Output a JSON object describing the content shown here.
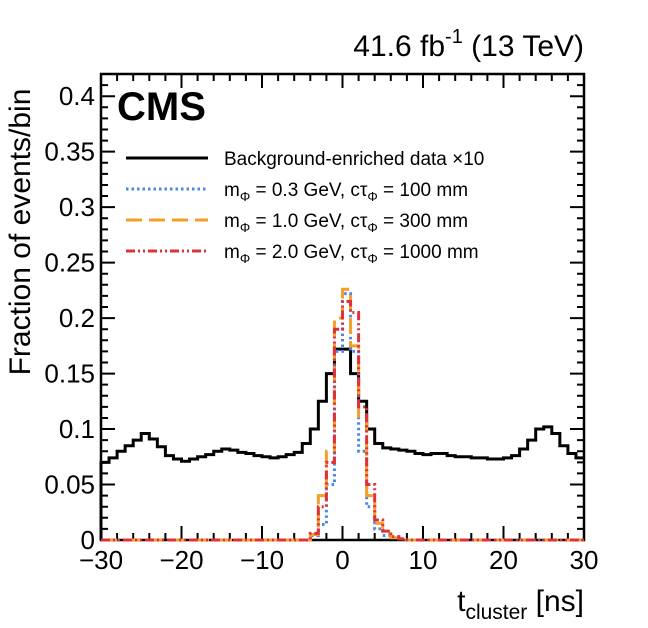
{
  "chart_data": {
    "type": "line",
    "title": "",
    "experiment_label": "CMS",
    "lumi_label": {
      "value": "41.6 fb",
      "exponent": "-1",
      "energy": " (13 TeV)"
    },
    "xlabel": {
      "main": "t",
      "sub": "cluster",
      "unit": " [ns]"
    },
    "ylabel": "Fraction of events/bin",
    "xlim": [
      -30,
      30
    ],
    "ylim": [
      0,
      0.42
    ],
    "x_ticks": [
      -30,
      -20,
      -10,
      0,
      10,
      20,
      30
    ],
    "x_tick_labels": [
      "−30",
      "−20",
      "−10",
      "0",
      "10",
      "20",
      "30"
    ],
    "y_ticks": [
      0,
      0.05,
      0.1,
      0.15,
      0.2,
      0.25,
      0.3,
      0.35,
      0.4
    ],
    "y_tick_labels": [
      "0",
      "0.05",
      "0.1",
      "0.15",
      "0.2",
      "0.25",
      "0.3",
      "0.35",
      "0.4"
    ],
    "bin_edges_start": -30,
    "bin_width": 1,
    "legend_position": "top-right",
    "series": [
      {
        "name": "Background-enriched data ×10",
        "legend": {
          "parts": [
            {
              "t": "Background-enriched data ×10"
            }
          ]
        },
        "color": "#000000",
        "style": "solid",
        "values": [
          0.07,
          0.074,
          0.08,
          0.085,
          0.09,
          0.096,
          0.091,
          0.084,
          0.076,
          0.073,
          0.071,
          0.073,
          0.075,
          0.077,
          0.08,
          0.082,
          0.081,
          0.079,
          0.078,
          0.076,
          0.075,
          0.074,
          0.075,
          0.077,
          0.079,
          0.087,
          0.1,
          0.125,
          0.15,
          0.172,
          0.172,
          0.15,
          0.125,
          0.1,
          0.087,
          0.083,
          0.082,
          0.081,
          0.08,
          0.078,
          0.077,
          0.078,
          0.078,
          0.076,
          0.075,
          0.075,
          0.074,
          0.074,
          0.073,
          0.073,
          0.074,
          0.076,
          0.082,
          0.09,
          0.1,
          0.102,
          0.096,
          0.085,
          0.078,
          0.074
        ]
      },
      {
        "name": "m_Phi = 0.3 GeV, ctau_Phi = 100 mm",
        "legend": {
          "parts": [
            {
              "t": "m"
            },
            {
              "s": "Φ"
            },
            {
              "t": " = 0.3 GeV, cτ"
            },
            {
              "s": "Φ"
            },
            {
              "t": " = 100 mm"
            }
          ]
        },
        "color": "#4a86e8",
        "style": "dotted",
        "values": [
          0,
          0,
          0,
          0,
          0,
          0,
          0,
          0,
          0,
          0,
          0,
          0,
          0,
          0,
          0,
          0,
          0,
          0,
          0,
          0,
          0,
          0,
          0,
          0,
          0,
          0,
          0.004,
          0.014,
          0.05,
          0.17,
          0.222,
          0.17,
          0.08,
          0.03,
          0.01,
          0.004,
          0.002,
          0.001,
          0,
          0,
          0,
          0,
          0,
          0,
          0,
          0,
          0,
          0,
          0,
          0,
          0,
          0,
          0,
          0,
          0,
          0,
          0,
          0,
          0,
          0
        ]
      },
      {
        "name": "m_Phi = 1.0 GeV, ctau_Phi = 300 mm",
        "legend": {
          "parts": [
            {
              "t": "m"
            },
            {
              "s": "Φ"
            },
            {
              "t": " = 1.0 GeV, cτ"
            },
            {
              "s": "Φ"
            },
            {
              "t": " = 300 mm"
            }
          ]
        },
        "color": "#f2a02a",
        "style": "dashed",
        "values": [
          0,
          0,
          0,
          0,
          0,
          0,
          0,
          0,
          0,
          0,
          0,
          0,
          0,
          0,
          0,
          0,
          0,
          0,
          0,
          0,
          0,
          0,
          0,
          0,
          0,
          0,
          0.005,
          0.04,
          0.08,
          0.2,
          0.226,
          0.175,
          0.11,
          0.04,
          0.015,
          0.006,
          0.002,
          0,
          0,
          0,
          0,
          0,
          0,
          0,
          0,
          0,
          0,
          0,
          0,
          0,
          0,
          0,
          0,
          0,
          0,
          0,
          0,
          0,
          0,
          0
        ]
      },
      {
        "name": "m_Phi = 2.0 GeV, ctau_Phi = 1000 mm",
        "legend": {
          "parts": [
            {
              "t": "m"
            },
            {
              "s": "Φ"
            },
            {
              "t": " = 2.0 GeV, cτ"
            },
            {
              "s": "Φ"
            },
            {
              "t": " = 1000 mm"
            }
          ]
        },
        "color": "#e0303a",
        "style": "dashdot",
        "values": [
          0,
          0,
          0,
          0,
          0,
          0,
          0,
          0,
          0,
          0,
          0,
          0,
          0,
          0,
          0,
          0,
          0,
          0,
          0,
          0,
          0,
          0,
          0,
          0,
          0,
          0,
          0.006,
          0.03,
          0.07,
          0.19,
          0.215,
          0.205,
          0.12,
          0.05,
          0.018,
          0.008,
          0.003,
          0.001,
          0,
          0,
          0,
          0,
          0,
          0,
          0,
          0,
          0,
          0,
          0,
          0,
          0,
          0,
          0,
          0,
          0,
          0,
          0,
          0,
          0,
          0
        ]
      }
    ]
  }
}
